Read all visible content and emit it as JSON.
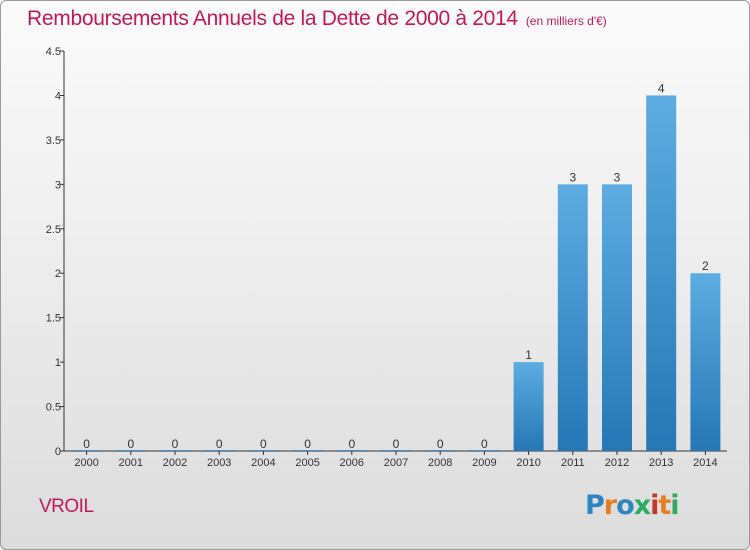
{
  "header": {
    "title": "Remboursements Annuels de la Dette de 2000 à 2014",
    "unit": "(en milliers d'€)"
  },
  "footer": {
    "commune": "VROIL",
    "logo": "Proxiti",
    "logo_colors": [
      "#2e86c1",
      "#e67e22",
      "#2e86c1",
      "#27ae60",
      "#c0392b",
      "#e67e22",
      "#27ae60"
    ]
  },
  "chart_data": {
    "type": "bar",
    "title": "Remboursements Annuels de la Dette de 2000 à 2014",
    "xlabel": "",
    "ylabel": "",
    "categories": [
      "2000",
      "2001",
      "2002",
      "2003",
      "2004",
      "2005",
      "2006",
      "2007",
      "2008",
      "2009",
      "2010",
      "2011",
      "2012",
      "2013",
      "2014"
    ],
    "values": [
      0,
      0,
      0,
      0,
      0,
      0,
      0,
      0,
      0,
      0,
      1,
      3,
      3,
      4,
      2
    ],
    "data_labels": [
      "0",
      "0",
      "0",
      "0",
      "0",
      "0",
      "0",
      "0",
      "0",
      "0",
      "1",
      "3",
      "3",
      "4",
      "2"
    ],
    "ylim": [
      0,
      4.5
    ],
    "yticks": [
      0,
      0.5,
      1,
      1.5,
      2,
      2.5,
      3,
      3.5,
      4,
      4.5
    ],
    "ytick_labels": [
      "0",
      "0.5",
      "1",
      "1.5",
      "2",
      "2.5",
      "3",
      "3.5",
      "4",
      "4.5"
    ],
    "bar_color_top": "#5dade2",
    "bar_color_bottom": "#2577b5",
    "grid": false,
    "legend": "none"
  }
}
